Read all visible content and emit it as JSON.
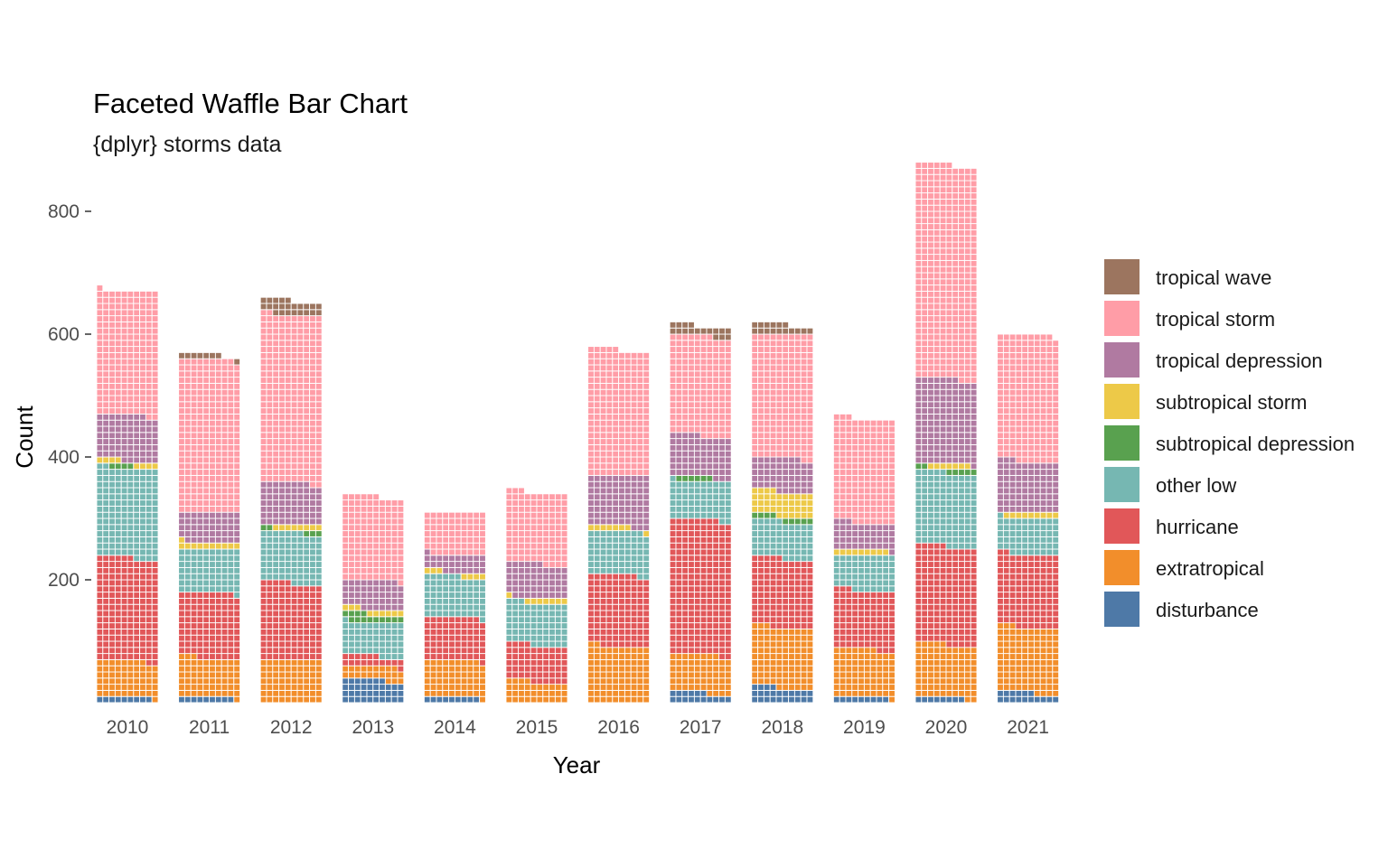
{
  "chart_data": {
    "type": "bar",
    "variant": "stacked waffle bar (each cell = 1 count, 10 cells per row)",
    "title": "Faceted Waffle Bar Chart",
    "subtitle": "{dplyr} storms data",
    "xlabel": "Year",
    "ylabel": "Count",
    "ylim": [
      0,
      880
    ],
    "yticks": [
      200,
      400,
      600,
      800
    ],
    "grid": false,
    "legend_position": "right",
    "categories": [
      "2010",
      "2011",
      "2012",
      "2013",
      "2014",
      "2015",
      "2016",
      "2017",
      "2018",
      "2019",
      "2020",
      "2021"
    ],
    "series": [
      {
        "name": "disturbance",
        "color": "#4E79A7",
        "values": [
          9,
          9,
          0,
          37,
          9,
          0,
          0,
          16,
          24,
          9,
          8,
          16
        ]
      },
      {
        "name": "extratropical",
        "color": "#F28E2B",
        "values": [
          59,
          64,
          70,
          22,
          60,
          34,
          92,
          62,
          99,
          78,
          87,
          107
        ]
      },
      {
        "name": "hurricane",
        "color": "#E15759",
        "values": [
          168,
          106,
          125,
          17,
          70,
          60,
          116,
          220,
          112,
          96,
          160,
          119
        ]
      },
      {
        "name": "other low",
        "color": "#76B7B2",
        "values": [
          146,
          71,
          82,
          55,
          67,
          69,
          71,
          63,
          60,
          57,
          120,
          59
        ]
      },
      {
        "name": "subtropical depression",
        "color": "#59A14F",
        "values": [
          4,
          0,
          5,
          13,
          0,
          0,
          0,
          6,
          9,
          0,
          7,
          0
        ]
      },
      {
        "name": "subtropical storm",
        "color": "#EDC948",
        "values": [
          8,
          11,
          8,
          9,
          7,
          8,
          8,
          0,
          40,
          9,
          7,
          9
        ]
      },
      {
        "name": "tropical depression",
        "color": "#B07AA1",
        "values": [
          74,
          49,
          68,
          46,
          28,
          55,
          83,
          68,
          54,
          44,
          138,
          83
        ]
      },
      {
        "name": "tropical storm",
        "color": "#FF9DA7",
        "values": [
          203,
          249,
          274,
          137,
          69,
          117,
          205,
          162,
          202,
          170,
          349,
          206
        ]
      },
      {
        "name": "tropical wave",
        "color": "#9C755F",
        "values": [
          0,
          8,
          23,
          0,
          0,
          0,
          0,
          17,
          16,
          0,
          0,
          0
        ]
      }
    ]
  }
}
